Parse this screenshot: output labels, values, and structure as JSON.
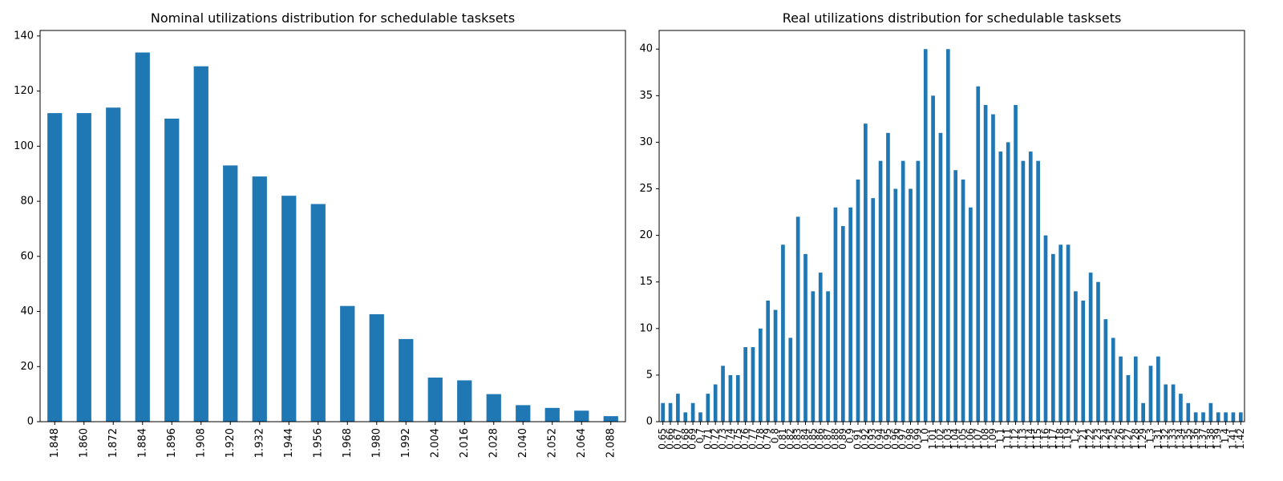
{
  "chart_data": [
    {
      "type": "bar",
      "title": "Nominal utilizations distribution for schedulable tasksets",
      "xlabel": "",
      "ylabel": "",
      "ylim": [
        0,
        142
      ],
      "yticks": [
        0,
        20,
        40,
        60,
        80,
        100,
        120,
        140
      ],
      "color": "#1f77b4",
      "categories": [
        "1.848",
        "1.860",
        "1.872",
        "1.884",
        "1.896",
        "1.908",
        "1.920",
        "1.932",
        "1.944",
        "1.956",
        "1.968",
        "1.980",
        "1.992",
        "2.004",
        "2.016",
        "2.028",
        "2.040",
        "2.052",
        "2.064",
        "2.088"
      ],
      "values": [
        112,
        112,
        114,
        134,
        110,
        129,
        93,
        89,
        82,
        79,
        42,
        39,
        30,
        16,
        15,
        10,
        6,
        5,
        4,
        2
      ]
    },
    {
      "type": "bar",
      "title": "Real utilizations distribution for schedulable tasksets",
      "xlabel": "",
      "ylabel": "",
      "ylim": [
        0,
        42
      ],
      "yticks": [
        0,
        5,
        10,
        15,
        20,
        25,
        30,
        35,
        40
      ],
      "color": "#1f77b4",
      "categories": [
        "0.65",
        "0.66",
        "0.67",
        "0.68",
        "0.69",
        "0.7",
        "0.71",
        "0.72",
        "0.73",
        "0.74",
        "0.75",
        "0.76",
        "0.77",
        "0.78",
        "0.79",
        "0.8",
        "0.81",
        "0.82",
        "0.83",
        "0.84",
        "0.85",
        "0.86",
        "0.87",
        "0.88",
        "0.89",
        "0.9",
        "0.91",
        "0.92",
        "0.93",
        "0.94",
        "0.95",
        "0.96",
        "0.97",
        "0.98",
        "0.99",
        "1.0",
        "1.01",
        "1.02",
        "1.03",
        "1.04",
        "1.05",
        "1.06",
        "1.07",
        "1.08",
        "1.09",
        "1.1",
        "1.11",
        "1.12",
        "1.13",
        "1.14",
        "1.15",
        "1.16",
        "1.17",
        "1.18",
        "1.19",
        "1.2",
        "1.21",
        "1.22",
        "1.23",
        "1.24",
        "1.25",
        "1.26",
        "1.27",
        "1.28",
        "1.29",
        "1.3",
        "1.31",
        "1.32",
        "1.33",
        "1.34",
        "1.35",
        "1.36",
        "1.37",
        "1.38",
        "1.39",
        "1.4",
        "1.41",
        "1.42"
      ],
      "values": [
        2,
        2,
        3,
        1,
        2,
        1,
        3,
        4,
        6,
        5,
        5,
        8,
        8,
        10,
        13,
        12,
        19,
        9,
        22,
        18,
        14,
        16,
        14,
        23,
        21,
        23,
        26,
        32,
        24,
        28,
        31,
        25,
        28,
        25,
        28,
        40,
        35,
        31,
        40,
        27,
        26,
        23,
        36,
        34,
        33,
        29,
        30,
        34,
        28,
        29,
        28,
        20,
        18,
        19,
        19,
        14,
        13,
        16,
        15,
        11,
        9,
        7,
        5,
        7,
        2,
        6,
        7,
        4,
        4,
        3,
        2,
        1,
        1,
        2,
        1,
        1,
        1,
        1
      ]
    }
  ]
}
